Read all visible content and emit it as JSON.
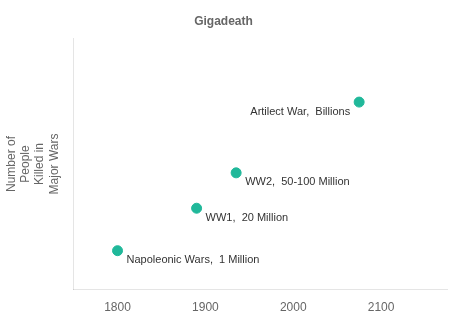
{
  "chart_data": {
    "type": "scatter",
    "title": "Gigadeath",
    "y_label": "Number of\nPeople\nKilled in\nMajor Wars",
    "x": [
      1800,
      1890,
      1935,
      2075
    ],
    "values": [
      1.0,
      2.2,
      3.2,
      5.2
    ],
    "annotations": [
      "Napoleonic Wars,  1 Million",
      "WW1,  20 Million",
      "WW2,  50-100 Million",
      "Artilect War,  Billions"
    ],
    "color": "#20b89a",
    "marker": "circle",
    "xlim": [
      1750,
      2175
    ],
    "ylim": [
      -0.1,
      7.0
    ],
    "xticks": [
      1800,
      1900,
      2000,
      2100
    ],
    "tick_labels": "x",
    "grid": false
  }
}
